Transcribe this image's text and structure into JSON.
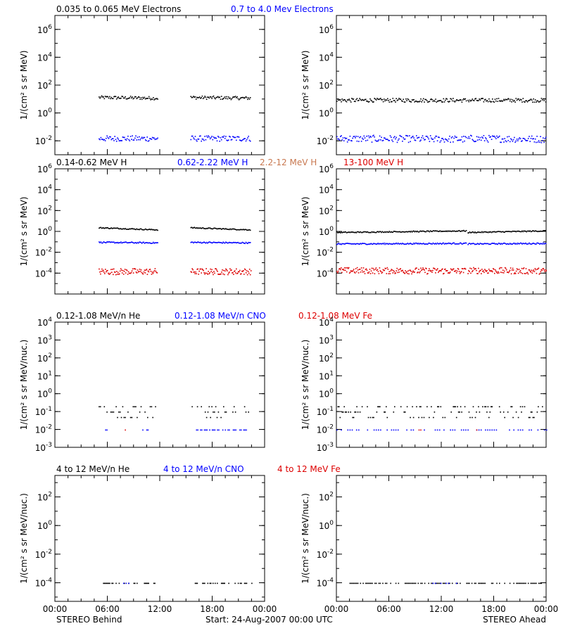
{
  "colors": {
    "black": "#000000",
    "blue": "#0000ff",
    "tan": "#c87850",
    "red": "#dd0000"
  },
  "footer": {
    "left": "STEREO Behind",
    "center": "Start: 24-Aug-2007 00:00 UTC",
    "right": "STEREO Ahead"
  },
  "x_ticks": [
    "00:00",
    "06:00",
    "12:00",
    "18:00",
    "00:00"
  ],
  "chart_data": [
    {
      "type": "scatter",
      "panel": "electrons",
      "legend": [
        {
          "label": "0.035 to 0.065 MeV Electrons",
          "color": "black"
        },
        {
          "label": "0.7 to 4.0 Mev Electrons",
          "color": "blue"
        }
      ],
      "ylabel": "1/(cm² s sr MeV)",
      "y_log_range": [
        -3,
        7
      ],
      "y_ticks": [
        {
          "base": "10",
          "exp": "6",
          "e": 6
        },
        {
          "base": "10",
          "exp": "4",
          "e": 4
        },
        {
          "base": "10",
          "exp": "2",
          "e": 2
        },
        {
          "base": "10",
          "exp": "0",
          "e": 0
        },
        {
          "base": "10",
          "exp": "-2",
          "e": -2
        }
      ],
      "x_range_hours": [
        0,
        24
      ],
      "behind": [
        {
          "color": "black",
          "segments": [
            [
              5,
              11.7
            ],
            [
              15.5,
              22.4
            ]
          ],
          "log_start": 1.15,
          "log_end": 1.1,
          "jitter": 0.12,
          "density": 0.1
        },
        {
          "color": "blue",
          "segments": [
            [
              5,
              11.7
            ],
            [
              15.5,
              22.4
            ]
          ],
          "log_start": -1.8,
          "log_end": -1.8,
          "jitter": 0.2,
          "density": 0.1
        }
      ],
      "ahead": [
        {
          "color": "black",
          "segments": [
            [
              0,
              14.8
            ],
            [
              15,
              24
            ]
          ],
          "log_start": 0.95,
          "log_end": 0.95,
          "jitter": 0.14,
          "density": 0.1
        },
        {
          "color": "blue",
          "segments": [
            [
              0,
              14.8
            ],
            [
              15,
              24
            ]
          ],
          "log_start": -1.8,
          "log_end": -1.85,
          "jitter": 0.25,
          "density": 0.1
        }
      ]
    },
    {
      "type": "scatter",
      "panel": "protons",
      "legend": [
        {
          "label": "0.14-0.62 MeV H",
          "color": "black"
        },
        {
          "label": "0.62-2.22 MeV H",
          "color": "blue"
        },
        {
          "label": "2.2-12 MeV H",
          "color": "tan"
        },
        {
          "label": "13-100 MeV H",
          "color": "red"
        }
      ],
      "ylabel": "1/(cm² s sr MeV)",
      "y_log_range": [
        -6,
        6
      ],
      "y_ticks": [
        {
          "base": "10",
          "exp": "6",
          "e": 6
        },
        {
          "base": "10",
          "exp": "4",
          "e": 4
        },
        {
          "base": "10",
          "exp": "2",
          "e": 2
        },
        {
          "base": "10",
          "exp": "0",
          "e": 0
        },
        {
          "base": "10",
          "exp": "-2",
          "e": -2
        },
        {
          "base": "10",
          "exp": "-4",
          "e": -4
        }
      ],
      "x_range_hours": [
        0,
        24
      ],
      "behind": [
        {
          "color": "black",
          "segments": [
            [
              5,
              11.7
            ],
            [
              15.5,
              22.4
            ]
          ],
          "log_start": 0.4,
          "log_end": 0.2,
          "jitter": 0.05,
          "density": 0.1
        },
        {
          "color": "blue",
          "segments": [
            [
              5,
              11.7
            ],
            [
              15.5,
              22.4
            ]
          ],
          "log_start": -1.0,
          "log_end": -1.05,
          "jitter": 0.06,
          "density": 0.1
        },
        {
          "color": "red",
          "segments": [
            [
              5,
              11.7
            ],
            [
              15.5,
              22.4
            ]
          ],
          "log_start": -3.8,
          "log_end": -3.8,
          "jitter": 0.3,
          "density": 0.08
        }
      ],
      "ahead": [
        {
          "color": "black",
          "segments": [
            [
              0,
              14.8
            ],
            [
              15,
              24
            ]
          ],
          "log_start": -0.05,
          "log_end": 0.1,
          "jitter": 0.05,
          "density": 0.1
        },
        {
          "color": "blue",
          "segments": [
            [
              0,
              14.8
            ],
            [
              15,
              24
            ]
          ],
          "log_start": -1.15,
          "log_end": -1.1,
          "jitter": 0.06,
          "density": 0.1
        },
        {
          "color": "red",
          "segments": [
            [
              0,
              14.8
            ],
            [
              15,
              24
            ]
          ],
          "log_start": -3.7,
          "log_end": -3.75,
          "jitter": 0.3,
          "density": 0.08
        }
      ]
    },
    {
      "type": "scatter",
      "panel": "heavy_low",
      "legend": [
        {
          "label": "0.12-1.08 MeV/n He",
          "color": "black"
        },
        {
          "label": "0.12-1.08 MeV/n CNO",
          "color": "blue"
        },
        {
          "label": "0.12-1.08 MeV Fe",
          "color": "red"
        }
      ],
      "ylabel": "1/(cm² s sr MeV/nuc.)",
      "y_log_range": [
        -3,
        4
      ],
      "y_ticks": [
        {
          "base": "10",
          "exp": "4",
          "e": 4
        },
        {
          "base": "10",
          "exp": "3",
          "e": 3
        },
        {
          "base": "10",
          "exp": "2",
          "e": 2
        },
        {
          "base": "10",
          "exp": "1",
          "e": 1
        },
        {
          "base": "10",
          "exp": "0",
          "e": 0
        },
        {
          "base": "10",
          "exp": "-1",
          "e": -1
        },
        {
          "base": "10",
          "exp": "-2",
          "e": -2
        },
        {
          "base": "10",
          "exp": "-3",
          "e": -3
        }
      ],
      "x_range_hours": [
        0,
        24
      ],
      "behind": [
        {
          "color": "black",
          "segments": [
            [
              5,
              11.7
            ],
            [
              15.5,
              22.4
            ]
          ],
          "levels": [
            -1.3,
            -1.0,
            -0.7
          ],
          "density": 0.15
        },
        {
          "color": "blue",
          "segments": [
            [
              5,
              6
            ],
            [
              10,
              11
            ],
            [
              16,
              22
            ]
          ],
          "levels": [
            -2.0
          ],
          "density": 0.15
        },
        {
          "color": "red",
          "segments": [
            [
              7.7,
              8.0
            ]
          ],
          "levels": [
            -2.0
          ],
          "density": 0.15
        }
      ],
      "ahead": [
        {
          "color": "black",
          "segments": [
            [
              0,
              24
            ]
          ],
          "levels": [
            -1.3,
            -1.0,
            -0.7
          ],
          "density": 0.12
        },
        {
          "color": "blue",
          "segments": [
            [
              0,
              24
            ]
          ],
          "levels": [
            -2.0
          ],
          "density": 0.25
        },
        {
          "color": "red",
          "segments": [
            [
              5.3,
              5.5
            ],
            [
              9.4,
              9.6
            ],
            [
              15.8,
              16
            ]
          ],
          "levels": [
            -2.0
          ],
          "density": 0.2
        }
      ]
    },
    {
      "type": "scatter",
      "panel": "heavy_high",
      "legend": [
        {
          "label": "4 to 12 MeV/n He",
          "color": "black"
        },
        {
          "label": "4 to 12 MeV/n CNO",
          "color": "blue"
        },
        {
          "label": "4 to 12 MeV Fe",
          "color": "red"
        }
      ],
      "ylabel": "1/(cm² s sr MeV/nuc.)",
      "y_log_range": [
        -5.3,
        3.5
      ],
      "y_ticks": [
        {
          "base": "10",
          "exp": "2",
          "e": 2
        },
        {
          "base": "10",
          "exp": "0",
          "e": 0
        },
        {
          "base": "10",
          "exp": "-2",
          "e": -2
        },
        {
          "base": "10",
          "exp": "-4",
          "e": -4
        }
      ],
      "x_range_hours": [
        0,
        24
      ],
      "behind": [
        {
          "color": "black",
          "segments": [
            [
              5.5,
              11.5
            ],
            [
              16,
              22.5
            ]
          ],
          "levels": [
            -4.0
          ],
          "density": 0.12
        },
        {
          "color": "blue",
          "segments": [
            [
              7.5,
              8.5
            ]
          ],
          "levels": [
            -4.0
          ],
          "density": 0.3
        }
      ],
      "ahead": [
        {
          "color": "black",
          "segments": [
            [
              1.5,
              23.5
            ]
          ],
          "levels": [
            -4.0
          ],
          "density": 0.15
        },
        {
          "color": "blue",
          "segments": [
            [
              11,
              14
            ]
          ],
          "levels": [
            -4.0
          ],
          "density": 0.3
        }
      ]
    }
  ]
}
